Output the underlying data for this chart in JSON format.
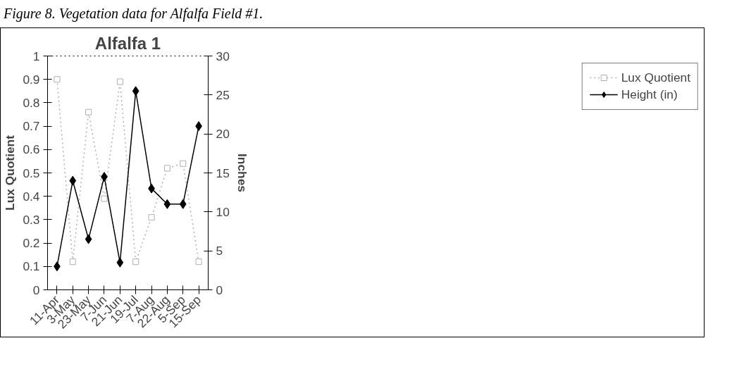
{
  "chart_data": {
    "type": "line",
    "title": "Alfalfa 1",
    "annotations": [
      "Figure 8.  Vegetation data for Alfalfa Field #1."
    ],
    "categories": [
      "11-Apr",
      "3-May",
      "23-May",
      "7-Jun",
      "21-Jun",
      "19-Jul",
      "7-Aug",
      "22-Aug",
      "5-Sep",
      "15-Sep"
    ],
    "ylabel": "Lux Quotient",
    "y2label": "Inches",
    "ylim": [
      0,
      1
    ],
    "yticks": [
      0,
      0.1,
      0.2,
      0.3,
      0.4,
      0.5,
      0.6,
      0.7,
      0.8,
      0.9,
      1
    ],
    "y2lim": [
      0,
      30
    ],
    "y2ticks": [
      0,
      5,
      10,
      15,
      20,
      25,
      30
    ],
    "legend": "right",
    "series": [
      {
        "name": "Lux Quotient",
        "color": "#b0b0b0",
        "marker": "square",
        "line_style": "dotted",
        "values": [
          0.9,
          0.12,
          0.76,
          0.39,
          0.89,
          0.12,
          0.31,
          0.52,
          0.54,
          0.12
        ]
      },
      {
        "name": "Height (in)",
        "color": "#000000",
        "marker": "diamond",
        "line_style": "solid",
        "axis": "y2",
        "values": [
          3,
          14,
          6.5,
          14.5,
          3.5,
          25.5,
          13,
          11,
          11,
          21
        ]
      }
    ]
  }
}
